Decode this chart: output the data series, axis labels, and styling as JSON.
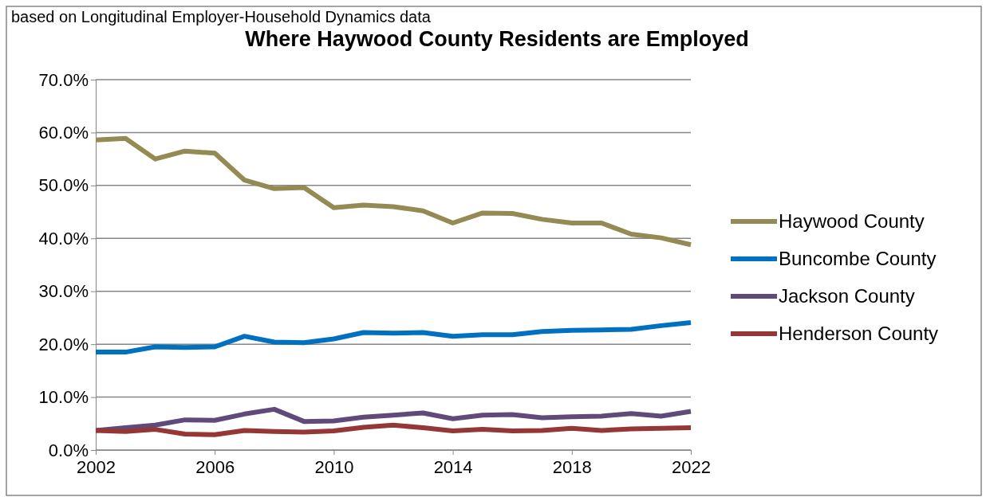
{
  "chart_data": {
    "type": "line",
    "title": "Where Haywood County Residents are Employed",
    "annotations": [
      "based on Longitudinal Employer-Household Dynamics data"
    ],
    "x": [
      2002,
      2003,
      2004,
      2005,
      2006,
      2007,
      2008,
      2009,
      2010,
      2011,
      2012,
      2013,
      2014,
      2015,
      2016,
      2017,
      2018,
      2019,
      2020,
      2021,
      2022
    ],
    "series": [
      {
        "name": "Haywood County",
        "color": "#948a54",
        "values": [
          58.6,
          58.9,
          55.0,
          56.5,
          56.1,
          51.0,
          49.4,
          49.6,
          45.8,
          46.3,
          46.0,
          45.2,
          42.9,
          44.8,
          44.7,
          43.6,
          42.9,
          42.9,
          40.8,
          40.1,
          38.8
        ]
      },
      {
        "name": "Buncombe County",
        "color": "#0070c0",
        "values": [
          18.5,
          18.5,
          19.5,
          19.4,
          19.5,
          21.5,
          20.4,
          20.3,
          21.0,
          22.2,
          22.1,
          22.2,
          21.5,
          21.8,
          21.8,
          22.4,
          22.6,
          22.7,
          22.8,
          23.5,
          24.1
        ]
      },
      {
        "name": "Jackson County",
        "color": "#604a7b",
        "values": [
          3.7,
          4.2,
          4.7,
          5.7,
          5.6,
          6.8,
          7.7,
          5.4,
          5.5,
          6.2,
          6.6,
          7.0,
          5.9,
          6.6,
          6.7,
          6.1,
          6.3,
          6.4,
          6.9,
          6.4,
          7.3
        ]
      },
      {
        "name": "Henderson County",
        "color": "#953735",
        "values": [
          3.7,
          3.5,
          3.9,
          3.0,
          2.9,
          3.7,
          3.5,
          3.4,
          3.6,
          4.3,
          4.7,
          4.2,
          3.6,
          3.9,
          3.6,
          3.7,
          4.1,
          3.7,
          4.0,
          4.1,
          4.2
        ]
      }
    ],
    "xlim": [
      2002,
      2022
    ],
    "xticks": [
      2002,
      2006,
      2010,
      2014,
      2018,
      2022
    ],
    "ylim": [
      0,
      70
    ],
    "yticks": [
      {
        "value": 0,
        "label": "0.0%"
      },
      {
        "value": 10,
        "label": "10.0%"
      },
      {
        "value": 20,
        "label": "20.0%"
      },
      {
        "value": 30,
        "label": "30.0%"
      },
      {
        "value": 40,
        "label": "40.0%"
      },
      {
        "value": 50,
        "label": "50.0%"
      },
      {
        "value": 60,
        "label": "60.0%"
      },
      {
        "value": 70,
        "label": "70.0%"
      }
    ],
    "grid": "y",
    "legend": "right",
    "marker": "none",
    "line_style": "solid"
  }
}
